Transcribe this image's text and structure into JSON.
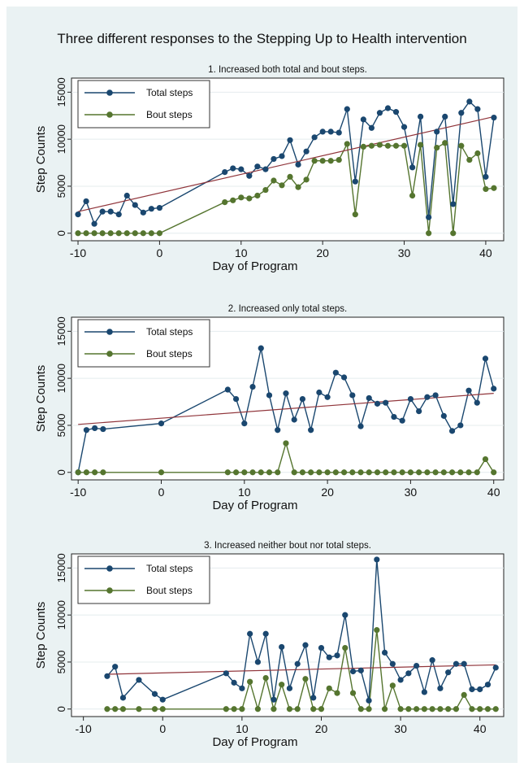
{
  "figure": {
    "title": "Three different responses to the Stepping Up to Health intervention",
    "colors": {
      "background": "#eaf2f3",
      "plot_area": "#ffffff",
      "total": "#1a476f",
      "bout": "#55752f",
      "fit": "#90353b"
    }
  },
  "chart_data": [
    {
      "type": "line",
      "title": "1. Increased both total and bout steps.",
      "xlabel": "Day of Program",
      "ylabel": "Step Counts",
      "xlim": [
        -10.8,
        42.2
      ],
      "ylim": [
        -800,
        16500
      ],
      "xticks": [
        -10,
        0,
        10,
        20,
        30,
        40
      ],
      "yticks": [
        0,
        5000,
        10000,
        15000
      ],
      "legend_placement": "top-left",
      "legend": [
        "Total steps",
        "Bout steps"
      ],
      "series": [
        {
          "name": "Total steps",
          "x": [
            -10,
            -9,
            -8,
            -7,
            -6,
            -5,
            -4,
            -3,
            -2,
            -1,
            0,
            8,
            9,
            10,
            11,
            12,
            13,
            14,
            15,
            16,
            17,
            18,
            19,
            20,
            21,
            22,
            23,
            24,
            25,
            26,
            27,
            28,
            29,
            30,
            31,
            32,
            33,
            34,
            35,
            36,
            37,
            38,
            39,
            40,
            41
          ],
          "y": [
            2000,
            3400,
            1000,
            2300,
            2300,
            2000,
            4000,
            3000,
            2200,
            2600,
            2700,
            6500,
            6900,
            6800,
            6100,
            7100,
            6800,
            7900,
            8200,
            9900,
            7300,
            8700,
            10200,
            10800,
            10800,
            10700,
            13200,
            5500,
            12100,
            11200,
            12800,
            13300,
            12900,
            11300,
            7000,
            12400,
            1700,
            10800,
            12400,
            3100,
            12800,
            14000,
            13200,
            6000,
            12300
          ]
        },
        {
          "name": "Bout steps",
          "x": [
            -10,
            -9,
            -8,
            -7,
            -6,
            -5,
            -4,
            -3,
            -2,
            -1,
            0,
            8,
            9,
            10,
            11,
            12,
            13,
            14,
            15,
            16,
            17,
            18,
            19,
            20,
            21,
            22,
            23,
            24,
            25,
            26,
            27,
            28,
            29,
            30,
            31,
            32,
            33,
            34,
            35,
            36,
            37,
            38,
            39,
            40,
            41
          ],
          "y": [
            0,
            0,
            0,
            0,
            0,
            0,
            0,
            0,
            0,
            0,
            0,
            3300,
            3500,
            3800,
            3700,
            4000,
            4600,
            5600,
            5100,
            6000,
            4900,
            5700,
            7700,
            7700,
            7700,
            7800,
            9500,
            2000,
            9200,
            9300,
            9400,
            9300,
            9300,
            9300,
            4000,
            9400,
            0,
            9100,
            9600,
            0,
            9300,
            7800,
            8500,
            4700,
            4800
          ]
        }
      ],
      "fit_line": {
        "x": [
          -10,
          41
        ],
        "y": [
          2300,
          12400
        ]
      }
    },
    {
      "type": "line",
      "title": "2. Increased only total steps.",
      "xlabel": "Day of Program",
      "ylabel": "Step Counts",
      "xlim": [
        -10.8,
        41.2
      ],
      "ylim": [
        -800,
        16500
      ],
      "xticks": [
        -10,
        0,
        10,
        20,
        30,
        40
      ],
      "yticks": [
        0,
        5000,
        10000,
        15000
      ],
      "legend_placement": "top-left",
      "legend": [
        "Total steps",
        "Bout steps"
      ],
      "series": [
        {
          "name": "Total steps",
          "x": [
            -10,
            -9,
            -8,
            -7,
            0,
            8,
            9,
            10,
            11,
            12,
            13,
            14,
            15,
            16,
            17,
            18,
            19,
            20,
            21,
            22,
            23,
            24,
            25,
            26,
            27,
            28,
            29,
            30,
            31,
            32,
            33,
            34,
            35,
            36,
            37,
            38,
            39,
            40
          ],
          "y": [
            0,
            4500,
            4700,
            4600,
            5200,
            8800,
            7800,
            5200,
            9100,
            13200,
            8200,
            4500,
            8400,
            5600,
            7800,
            4500,
            8500,
            8000,
            10600,
            10100,
            8200,
            4900,
            7900,
            7300,
            7400,
            5900,
            5500,
            7800,
            6500,
            8000,
            8200,
            6000,
            4400,
            5000,
            8700,
            7400,
            12100,
            8900
          ]
        },
        {
          "name": "Bout steps",
          "x": [
            -10,
            -9,
            -8,
            -7,
            0,
            8,
            9,
            10,
            11,
            12,
            13,
            14,
            15,
            16,
            17,
            18,
            19,
            20,
            21,
            22,
            23,
            24,
            25,
            26,
            27,
            28,
            29,
            30,
            31,
            32,
            33,
            34,
            35,
            36,
            37,
            38,
            39,
            40
          ],
          "y": [
            0,
            0,
            0,
            0,
            0,
            0,
            0,
            0,
            0,
            0,
            0,
            0,
            3100,
            0,
            0,
            0,
            0,
            0,
            0,
            0,
            0,
            0,
            0,
            0,
            0,
            0,
            0,
            0,
            0,
            0,
            0,
            0,
            0,
            0,
            0,
            0,
            1400,
            0
          ]
        }
      ],
      "fit_line": {
        "x": [
          -10,
          40
        ],
        "y": [
          5100,
          8400
        ]
      }
    },
    {
      "type": "line",
      "title": "3. Increased neither bout nor total steps.",
      "xlabel": "Day of Program",
      "ylabel": "Step Counts",
      "xlim": [
        -11.5,
        43
      ],
      "ylim": [
        -800,
        16500
      ],
      "xticks": [
        -10,
        0,
        10,
        20,
        30,
        40
      ],
      "yticks": [
        0,
        5000,
        10000,
        15000
      ],
      "legend_placement": "top-left",
      "legend": [
        "Total steps",
        "Bout steps"
      ],
      "series": [
        {
          "name": "Total steps",
          "x": [
            -7,
            -6,
            -5,
            -3,
            -1,
            0,
            8,
            9,
            10,
            11,
            12,
            13,
            14,
            15,
            16,
            17,
            18,
            19,
            20,
            21,
            22,
            23,
            24,
            25,
            26,
            27,
            28,
            29,
            30,
            31,
            32,
            33,
            34,
            35,
            36,
            37,
            38,
            39,
            40,
            41,
            42
          ],
          "y": [
            3500,
            4500,
            1200,
            3100,
            1600,
            1000,
            3800,
            2800,
            2200,
            8000,
            5000,
            8000,
            1000,
            6600,
            2200,
            4800,
            6800,
            1200,
            6500,
            5500,
            5700,
            10000,
            4000,
            4100,
            900,
            15900,
            6000,
            4800,
            3100,
            3800,
            4600,
            1800,
            5200,
            2200,
            3900,
            4800,
            4800,
            2100,
            2100,
            2600,
            4400
          ]
        },
        {
          "name": "Bout steps",
          "x": [
            -7,
            -6,
            -5,
            -3,
            -1,
            0,
            8,
            9,
            10,
            11,
            12,
            13,
            14,
            15,
            16,
            17,
            18,
            19,
            20,
            21,
            22,
            23,
            24,
            25,
            26,
            27,
            28,
            29,
            30,
            31,
            32,
            33,
            34,
            35,
            36,
            37,
            38,
            39,
            40,
            41,
            42
          ],
          "y": [
            0,
            0,
            0,
            0,
            0,
            0,
            0,
            0,
            0,
            2900,
            0,
            3300,
            0,
            2600,
            0,
            0,
            3200,
            0,
            0,
            2200,
            1700,
            6500,
            1700,
            0,
            0,
            8400,
            0,
            2500,
            0,
            0,
            0,
            0,
            0,
            0,
            0,
            0,
            1500,
            0,
            0,
            0,
            0
          ]
        }
      ],
      "fit_line": {
        "x": [
          -7,
          42
        ],
        "y": [
          3700,
          4700
        ]
      }
    }
  ]
}
